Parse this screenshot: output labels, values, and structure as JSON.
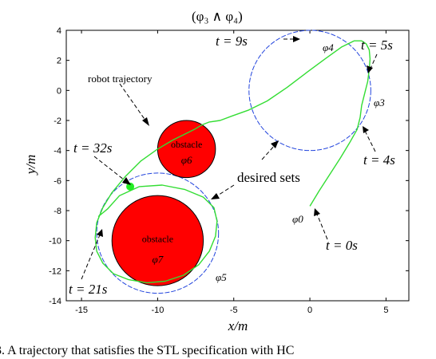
{
  "header_fragment": "(φ₃ ∧ φ₄)",
  "caption": "3.  A trajectory that satisfies the STL specification with HC",
  "chart_data": {
    "type": "line",
    "xlabel": "x/m",
    "ylabel": "y/m",
    "xlim": [
      -16,
      6.5
    ],
    "ylim": [
      -14,
      4
    ],
    "xticks": [
      -15,
      -10,
      -5,
      0,
      5
    ],
    "yticks": [
      4,
      2,
      0,
      -2,
      -4,
      -6,
      -8,
      -10,
      -12,
      -14
    ],
    "grid": false,
    "obstacles": [
      {
        "label": "obstacle",
        "region": "φ6",
        "cx": -8.1,
        "cy": -3.9,
        "r": 1.9,
        "color": "#ff0000"
      },
      {
        "label": "obstacle",
        "region": "φ7",
        "cx": -10.0,
        "cy": -10.0,
        "r": 3.0,
        "color": "#ff0000"
      }
    ],
    "desired_sets": [
      {
        "name": "φ5",
        "cx": -10.0,
        "cy": -9.5,
        "r": 4.0,
        "color": "#2244dd",
        "style": "dashed"
      },
      {
        "name": "φ3/φ4",
        "cx": 0.0,
        "cy": 0.0,
        "r": 4.0,
        "color": "#2244dd",
        "style": "dashed"
      }
    ],
    "trajectory": {
      "name": "robot trajectory",
      "color": "#33dd33",
      "x": [
        0.0,
        0.6,
        1.3,
        2.0,
        2.6,
        3.1,
        3.3,
        3.4,
        3.6,
        3.8,
        3.9,
        3.95,
        3.9,
        3.7,
        3.4,
        2.9,
        2.1,
        1.0,
        -0.2,
        -1.5,
        -2.8,
        -4.0,
        -5.1,
        -5.9,
        -6.6,
        -7.1,
        -7.6,
        -8.2,
        -9.0,
        -10.0,
        -11.1,
        -12.1,
        -13.0,
        -13.6,
        -14.0,
        -14.1,
        -14.0,
        -13.6,
        -12.9,
        -11.9,
        -10.7,
        -9.5,
        -8.3,
        -7.3,
        -6.6,
        -6.2,
        -6.1,
        -6.3,
        -7.0,
        -8.2,
        -9.7,
        -11.2,
        -12.5,
        -13.3,
        -13.9
      ],
      "y": [
        -7.7,
        -6.7,
        -5.6,
        -4.5,
        -3.5,
        -2.6,
        -1.8,
        -1.0,
        -0.2,
        0.6,
        1.4,
        2.1,
        2.7,
        3.1,
        3.3,
        3.3,
        2.9,
        2.1,
        1.2,
        0.2,
        -0.7,
        -1.3,
        -1.7,
        -2.0,
        -2.1,
        -2.3,
        -2.6,
        -2.9,
        -3.3,
        -3.9,
        -4.7,
        -5.7,
        -6.8,
        -7.8,
        -8.8,
        -9.8,
        -10.7,
        -11.5,
        -12.2,
        -12.6,
        -12.8,
        -12.7,
        -12.3,
        -11.6,
        -10.7,
        -9.7,
        -8.7,
        -7.8,
        -7.1,
        -6.6,
        -6.3,
        -6.4,
        -7.0,
        -7.9,
        -8.4
      ]
    },
    "marker": {
      "x": -11.8,
      "y": -6.4,
      "color": "#22ee22"
    },
    "annotations": [
      {
        "text": "robot trajectory"
      },
      {
        "text": "desired sets"
      },
      {
        "text": "t = 9s"
      },
      {
        "text": "t = 5s"
      },
      {
        "text": "t = 4s"
      },
      {
        "text": "t = 0s"
      },
      {
        "text": "t = 32s"
      },
      {
        "text": "t = 21s"
      }
    ],
    "region_labels": [
      "φ0",
      "φ3",
      "φ4",
      "φ5",
      "φ6",
      "φ7"
    ]
  }
}
